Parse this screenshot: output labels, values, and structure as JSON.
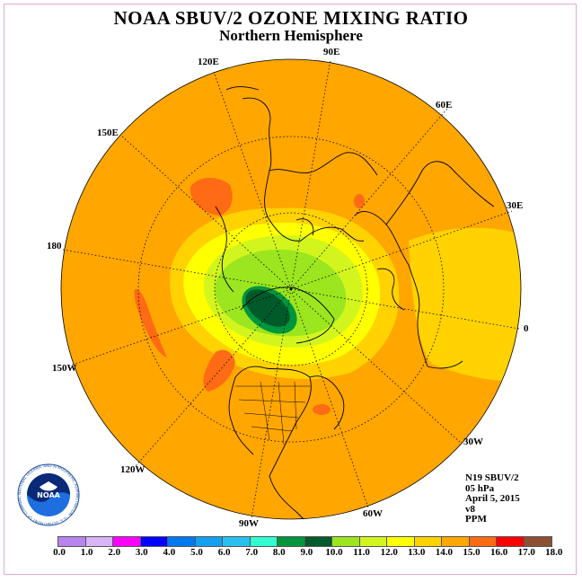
{
  "title": "NOAA SBUV/2 OZONE MIXING RATIO",
  "subtitle": "Northern Hemisphere",
  "longitudes": [
    {
      "label": "90E"
    },
    {
      "label": "60E"
    },
    {
      "label": "30E"
    },
    {
      "label": "0"
    },
    {
      "label": "30W"
    },
    {
      "label": "60W"
    },
    {
      "label": "90W"
    },
    {
      "label": "120W"
    },
    {
      "label": "150W"
    },
    {
      "label": "180"
    },
    {
      "label": "150E"
    },
    {
      "label": "120E"
    }
  ],
  "info": {
    "instrument": "N19 SBUV/2",
    "level": "05 hPa",
    "date": "April 5, 2015",
    "version": "v8",
    "units": "PPM"
  },
  "logo_text": "NOAA",
  "logo_ring_text": "NATIONAL OCEANIC AND ATMOSPHERIC ADMINISTRATION · U.S. DEPARTMENT OF COMMERCE",
  "legend": {
    "ticks": [
      "0.0",
      "1.0",
      "2.0",
      "3.0",
      "4.0",
      "5.0",
      "6.0",
      "7.0",
      "8.0",
      "9.0",
      "10.0",
      "11.0",
      "12.0",
      "13.0",
      "14.0",
      "15.0",
      "16.0",
      "17.0",
      "18.0"
    ],
    "colors": [
      "#b884f0",
      "#d8b4f8",
      "#ff00ff",
      "#0000ff",
      "#0078f0",
      "#14a0f0",
      "#28c0f0",
      "#32ffd2",
      "#00963c",
      "#005a2a",
      "#9be61e",
      "#d2f51e",
      "#ffff00",
      "#ffd200",
      "#ffa600",
      "#ff6a14",
      "#ff0000",
      "#8c5032"
    ]
  }
}
